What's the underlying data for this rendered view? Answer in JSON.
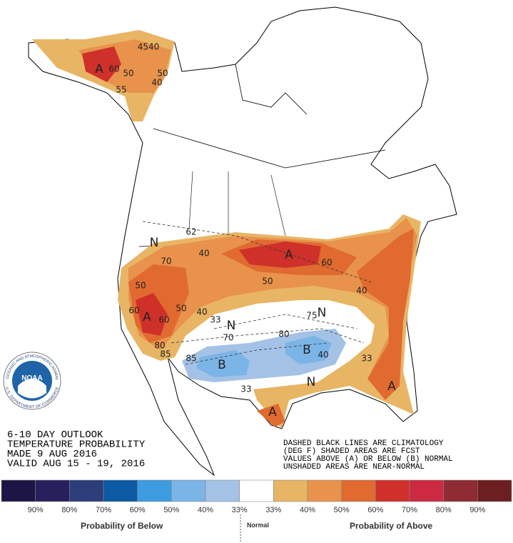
{
  "map_labels": [
    "A",
    "60",
    "50",
    "40",
    "50",
    "4540",
    "55",
    "N",
    "40",
    "70",
    "62",
    "A",
    "60",
    "50",
    "50",
    "40",
    "60",
    "A",
    "60",
    "50",
    "40",
    "33",
    "N",
    "N",
    "75",
    "70",
    "80",
    "B",
    "40",
    "33",
    "B",
    "N",
    "33",
    "A",
    "A",
    "85",
    "85",
    "80"
  ],
  "title_block": [
    "6-10 DAY OUTLOOK",
    "TEMPERATURE PROBABILITY",
    "MADE  9 AUG 2016",
    "VALID  AUG 15 - 19, 2016"
  ],
  "notes": [
    "DASHED BLACK LINES ARE CLIMATOLOGY",
    "(DEG F) SHADED AREAS ARE FCST",
    "VALUES ABOVE (A) OR BELOW (B) NORMAL",
    "UNSHADED AREAS ARE NEAR-NORMAL"
  ],
  "legend": {
    "colors": [
      "#1d1545",
      "#281f5d",
      "#2c3d7a",
      "#0b5aa3",
      "#3d9ce0",
      "#7bb4e6",
      "#a3c2e6",
      "#ffffff",
      "#e8b565",
      "#e8924b",
      "#e06a30",
      "#cf302a",
      "#cc2a42",
      "#8e2b33",
      "#6c1e20"
    ],
    "labels": [
      "90%",
      "80%",
      "70%",
      "60%",
      "50%",
      "40%",
      "33%",
      "33%",
      "40%",
      "50%",
      "60%",
      "70%",
      "80%",
      "90%"
    ],
    "below": "Probability of Below",
    "normal": "Normal",
    "above": "Probability of Above"
  },
  "logo": {
    "name": "NOAA",
    "ring": "NATIONAL OCEANIC AND ATMOSPHERIC ADMINISTRATION",
    "dept": "U.S. DEPARTMENT OF COMMERCE"
  }
}
